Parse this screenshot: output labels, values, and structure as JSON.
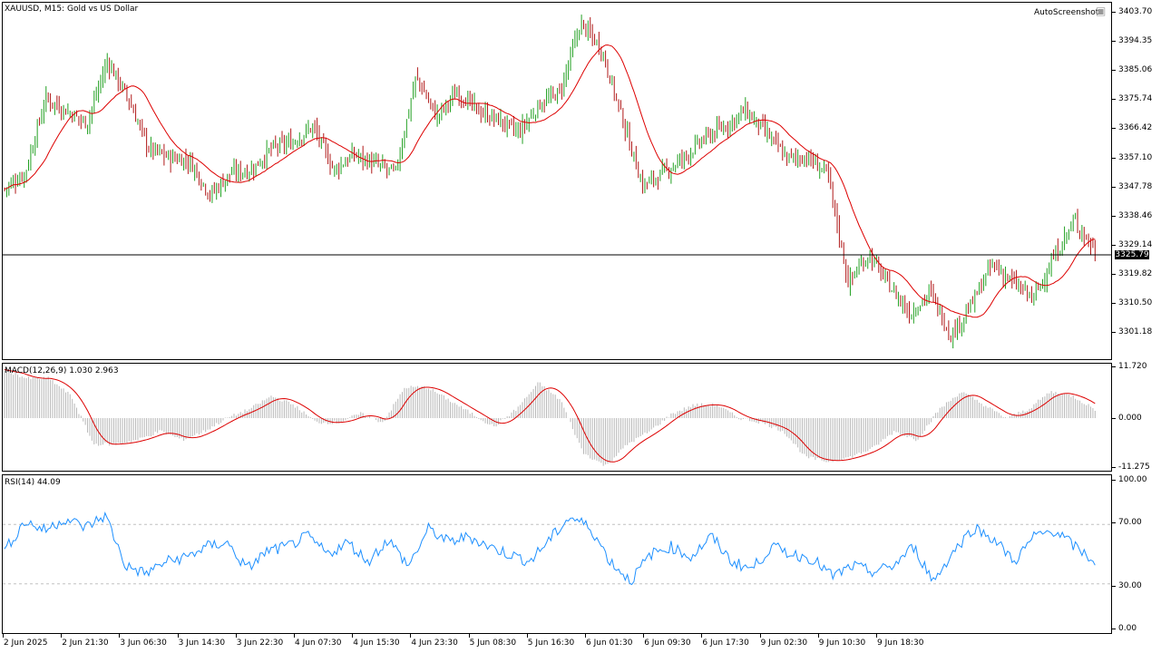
{
  "chart_header": {
    "symbol_line": "XAUUSD, M15:  Gold vs US Dollar",
    "watermark": "AutoScreenshot"
  },
  "price_pane": {
    "y_ticks": [
      "3403.70",
      "3394.35",
      "3385.06",
      "3375.74",
      "3366.42",
      "3357.10",
      "3347.78",
      "3338.46",
      "3329.14",
      "3319.82",
      "3310.50",
      "3301.18"
    ],
    "current_price": "3325.79"
  },
  "macd_pane": {
    "title": "MACD(12,26,9) 1.030 2.963",
    "y_ticks": [
      "11.720",
      "0.000",
      "-11.275"
    ]
  },
  "rsi_pane": {
    "title": "RSI(14) 44.09",
    "y_ticks": [
      "100.00",
      "70.00",
      "30.00",
      "0.00"
    ]
  },
  "time_axis": [
    "2 Jun 2025",
    "2 Jun 21:30",
    "3 Jun 06:30",
    "3 Jun 14:30",
    "3 Jun 22:30",
    "4 Jun 07:30",
    "4 Jun 15:30",
    "4 Jun 23:30",
    "5 Jun 08:30",
    "5 Jun 16:30",
    "6 Jun 01:30",
    "6 Jun 09:30",
    "6 Jun 17:30",
    "9 Jun 02:30",
    "9 Jun 10:30",
    "9 Jun 18:30"
  ],
  "colors": {
    "bull": "#22a022",
    "bear": "#b01818",
    "ma": "#dd0000",
    "macd_hist": "#b8b8b8",
    "macd_signal": "#dd0000",
    "rsi": "#1e90ff",
    "level": "#c0c0c0"
  },
  "chart_data": {
    "type": "line",
    "price_anchors": [
      3347,
      3352,
      3376,
      3372,
      3368,
      3388,
      3376,
      3360,
      3357,
      3356,
      3345,
      3352,
      3353,
      3360,
      3362,
      3367,
      3353,
      3358,
      3355,
      3352,
      3383,
      3370,
      3378,
      3372,
      3369,
      3365,
      3374,
      3378,
      3400,
      3392,
      3370,
      3348,
      3352,
      3357,
      3363,
      3367,
      3372,
      3365,
      3357,
      3357,
      3352,
      3317,
      3326,
      3316,
      3307,
      3314,
      3300,
      3310,
      3323,
      3317,
      3312,
      3325,
      3337,
      3327
    ],
    "ma_period": 20,
    "macd_anchors": [
      11,
      9,
      9,
      5,
      -6,
      -6,
      -5,
      -3,
      -5,
      -3,
      0,
      2,
      5,
      3,
      -1,
      -1,
      1,
      -1,
      7,
      7,
      4,
      1,
      -2,
      2,
      8,
      4,
      -8,
      -11,
      -6,
      -3,
      1,
      3,
      3,
      0,
      -1,
      -3,
      -9,
      -10,
      -9,
      -7,
      -3,
      -5,
      2,
      6,
      3,
      0,
      2,
      6,
      5,
      2
    ],
    "rsi_anchors": [
      52,
      72,
      66,
      74,
      68,
      76,
      42,
      37,
      45,
      48,
      55,
      58,
      40,
      52,
      55,
      62,
      50,
      58,
      45,
      60,
      42,
      67,
      58,
      62,
      55,
      50,
      45,
      60,
      75,
      68,
      45,
      32,
      50,
      55,
      48,
      62,
      45,
      40,
      55,
      50,
      47,
      35,
      42,
      38,
      42,
      55,
      32,
      52,
      68,
      60,
      45,
      62,
      66,
      55,
      45
    ],
    "macd_range": [
      -11.275,
      11.72
    ],
    "rsi_range": [
      0,
      100
    ],
    "rsi_levels": [
      30,
      70
    ]
  }
}
